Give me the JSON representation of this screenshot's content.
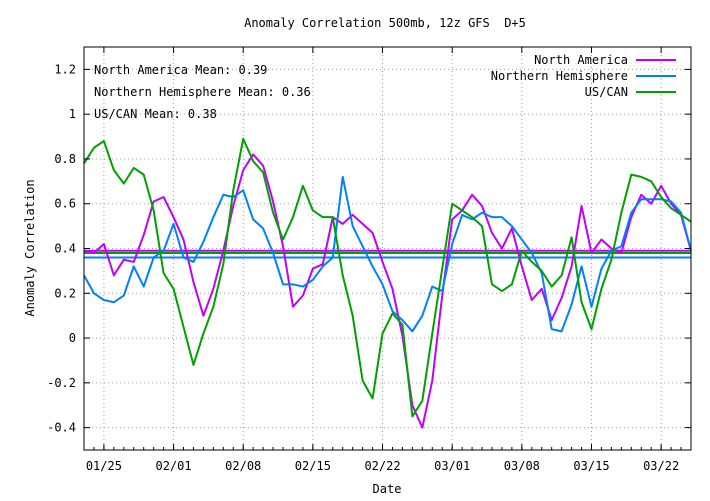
{
  "chart_data": {
    "type": "line",
    "title": "Anomaly Correlation 500mb, 12z GFS  D+5",
    "xlabel": "Date",
    "ylabel": "Anomaly Correlation",
    "ylim": [
      -0.5,
      1.3
    ],
    "yticks": [
      "-0.4",
      "-0.2",
      "0",
      "0.2",
      "0.4",
      "0.6",
      "0.8",
      "1",
      "1.2"
    ],
    "ytick_values": [
      -0.4,
      -0.2,
      0,
      0.2,
      0.4,
      0.6,
      0.8,
      1.0,
      1.2
    ],
    "xlim": [
      0,
      61
    ],
    "xticks": [
      "01/25",
      "02/01",
      "02/08",
      "02/15",
      "02/22",
      "03/01",
      "03/08",
      "03/15",
      "03/22"
    ],
    "xtick_positions": [
      2,
      9,
      16,
      23,
      30,
      37,
      44,
      51,
      58
    ],
    "grid": true,
    "legend_position": "top-right",
    "annotations": [
      "North America Mean: 0.39",
      "Northern Hemisphere Mean: 0.36",
      "US/CAN Mean: 0.38"
    ],
    "series": [
      {
        "name": "North America",
        "color": "#c000ff",
        "mean": 0.39,
        "values": [
          0.39,
          0.38,
          0.42,
          0.28,
          0.35,
          0.34,
          0.46,
          0.61,
          0.63,
          0.54,
          0.44,
          0.25,
          0.1,
          0.22,
          0.39,
          0.59,
          0.75,
          0.82,
          0.77,
          0.61,
          0.41,
          0.14,
          0.19,
          0.31,
          0.33,
          0.54,
          0.51,
          0.55,
          0.51,
          0.47,
          0.34,
          0.22,
          0.01,
          -0.3,
          -0.4,
          -0.19,
          0.19,
          0.53,
          0.57,
          0.64,
          0.59,
          0.47,
          0.4,
          0.49,
          0.32,
          0.17,
          0.22,
          0.08,
          0.18,
          0.32,
          0.59,
          0.38,
          0.44,
          0.4,
          0.38,
          0.54,
          0.64,
          0.6,
          0.68,
          0.6,
          0.55,
          0.39
        ]
      },
      {
        "name": "Northern Hemisphere",
        "color": "#0080ff",
        "mean": 0.36,
        "values": [
          0.28,
          0.2,
          0.17,
          0.16,
          0.19,
          0.32,
          0.23,
          0.36,
          0.39,
          0.51,
          0.36,
          0.34,
          0.43,
          0.54,
          0.64,
          0.63,
          0.66,
          0.53,
          0.49,
          0.38,
          0.24,
          0.24,
          0.23,
          0.26,
          0.32,
          0.36,
          0.72,
          0.5,
          0.41,
          0.32,
          0.24,
          0.12,
          0.08,
          0.03,
          0.1,
          0.23,
          0.21,
          0.42,
          0.55,
          0.53,
          0.56,
          0.54,
          0.54,
          0.5,
          0.44,
          0.38,
          0.29,
          0.04,
          0.03,
          0.15,
          0.32,
          0.14,
          0.31,
          0.39,
          0.41,
          0.56,
          0.62,
          0.62,
          0.62,
          0.61,
          0.56,
          0.39
        ]
      },
      {
        "name": "US/CAN",
        "color": "#00a000",
        "mean": 0.38,
        "values": [
          0.78,
          0.85,
          0.88,
          0.75,
          0.69,
          0.76,
          0.73,
          0.57,
          0.29,
          0.22,
          0.05,
          -0.12,
          0.02,
          0.14,
          0.33,
          0.66,
          0.89,
          0.79,
          0.74,
          0.56,
          0.44,
          0.54,
          0.68,
          0.57,
          0.54,
          0.54,
          0.28,
          0.1,
          -0.19,
          -0.27,
          0.02,
          0.11,
          0.06,
          -0.35,
          -0.28,
          0.02,
          0.31,
          0.6,
          0.57,
          0.54,
          0.5,
          0.24,
          0.21,
          0.24,
          0.39,
          0.34,
          0.3,
          0.23,
          0.28,
          0.45,
          0.16,
          0.04,
          0.22,
          0.35,
          0.56,
          0.73,
          0.72,
          0.7,
          0.63,
          0.58,
          0.55,
          0.52
        ]
      }
    ]
  }
}
